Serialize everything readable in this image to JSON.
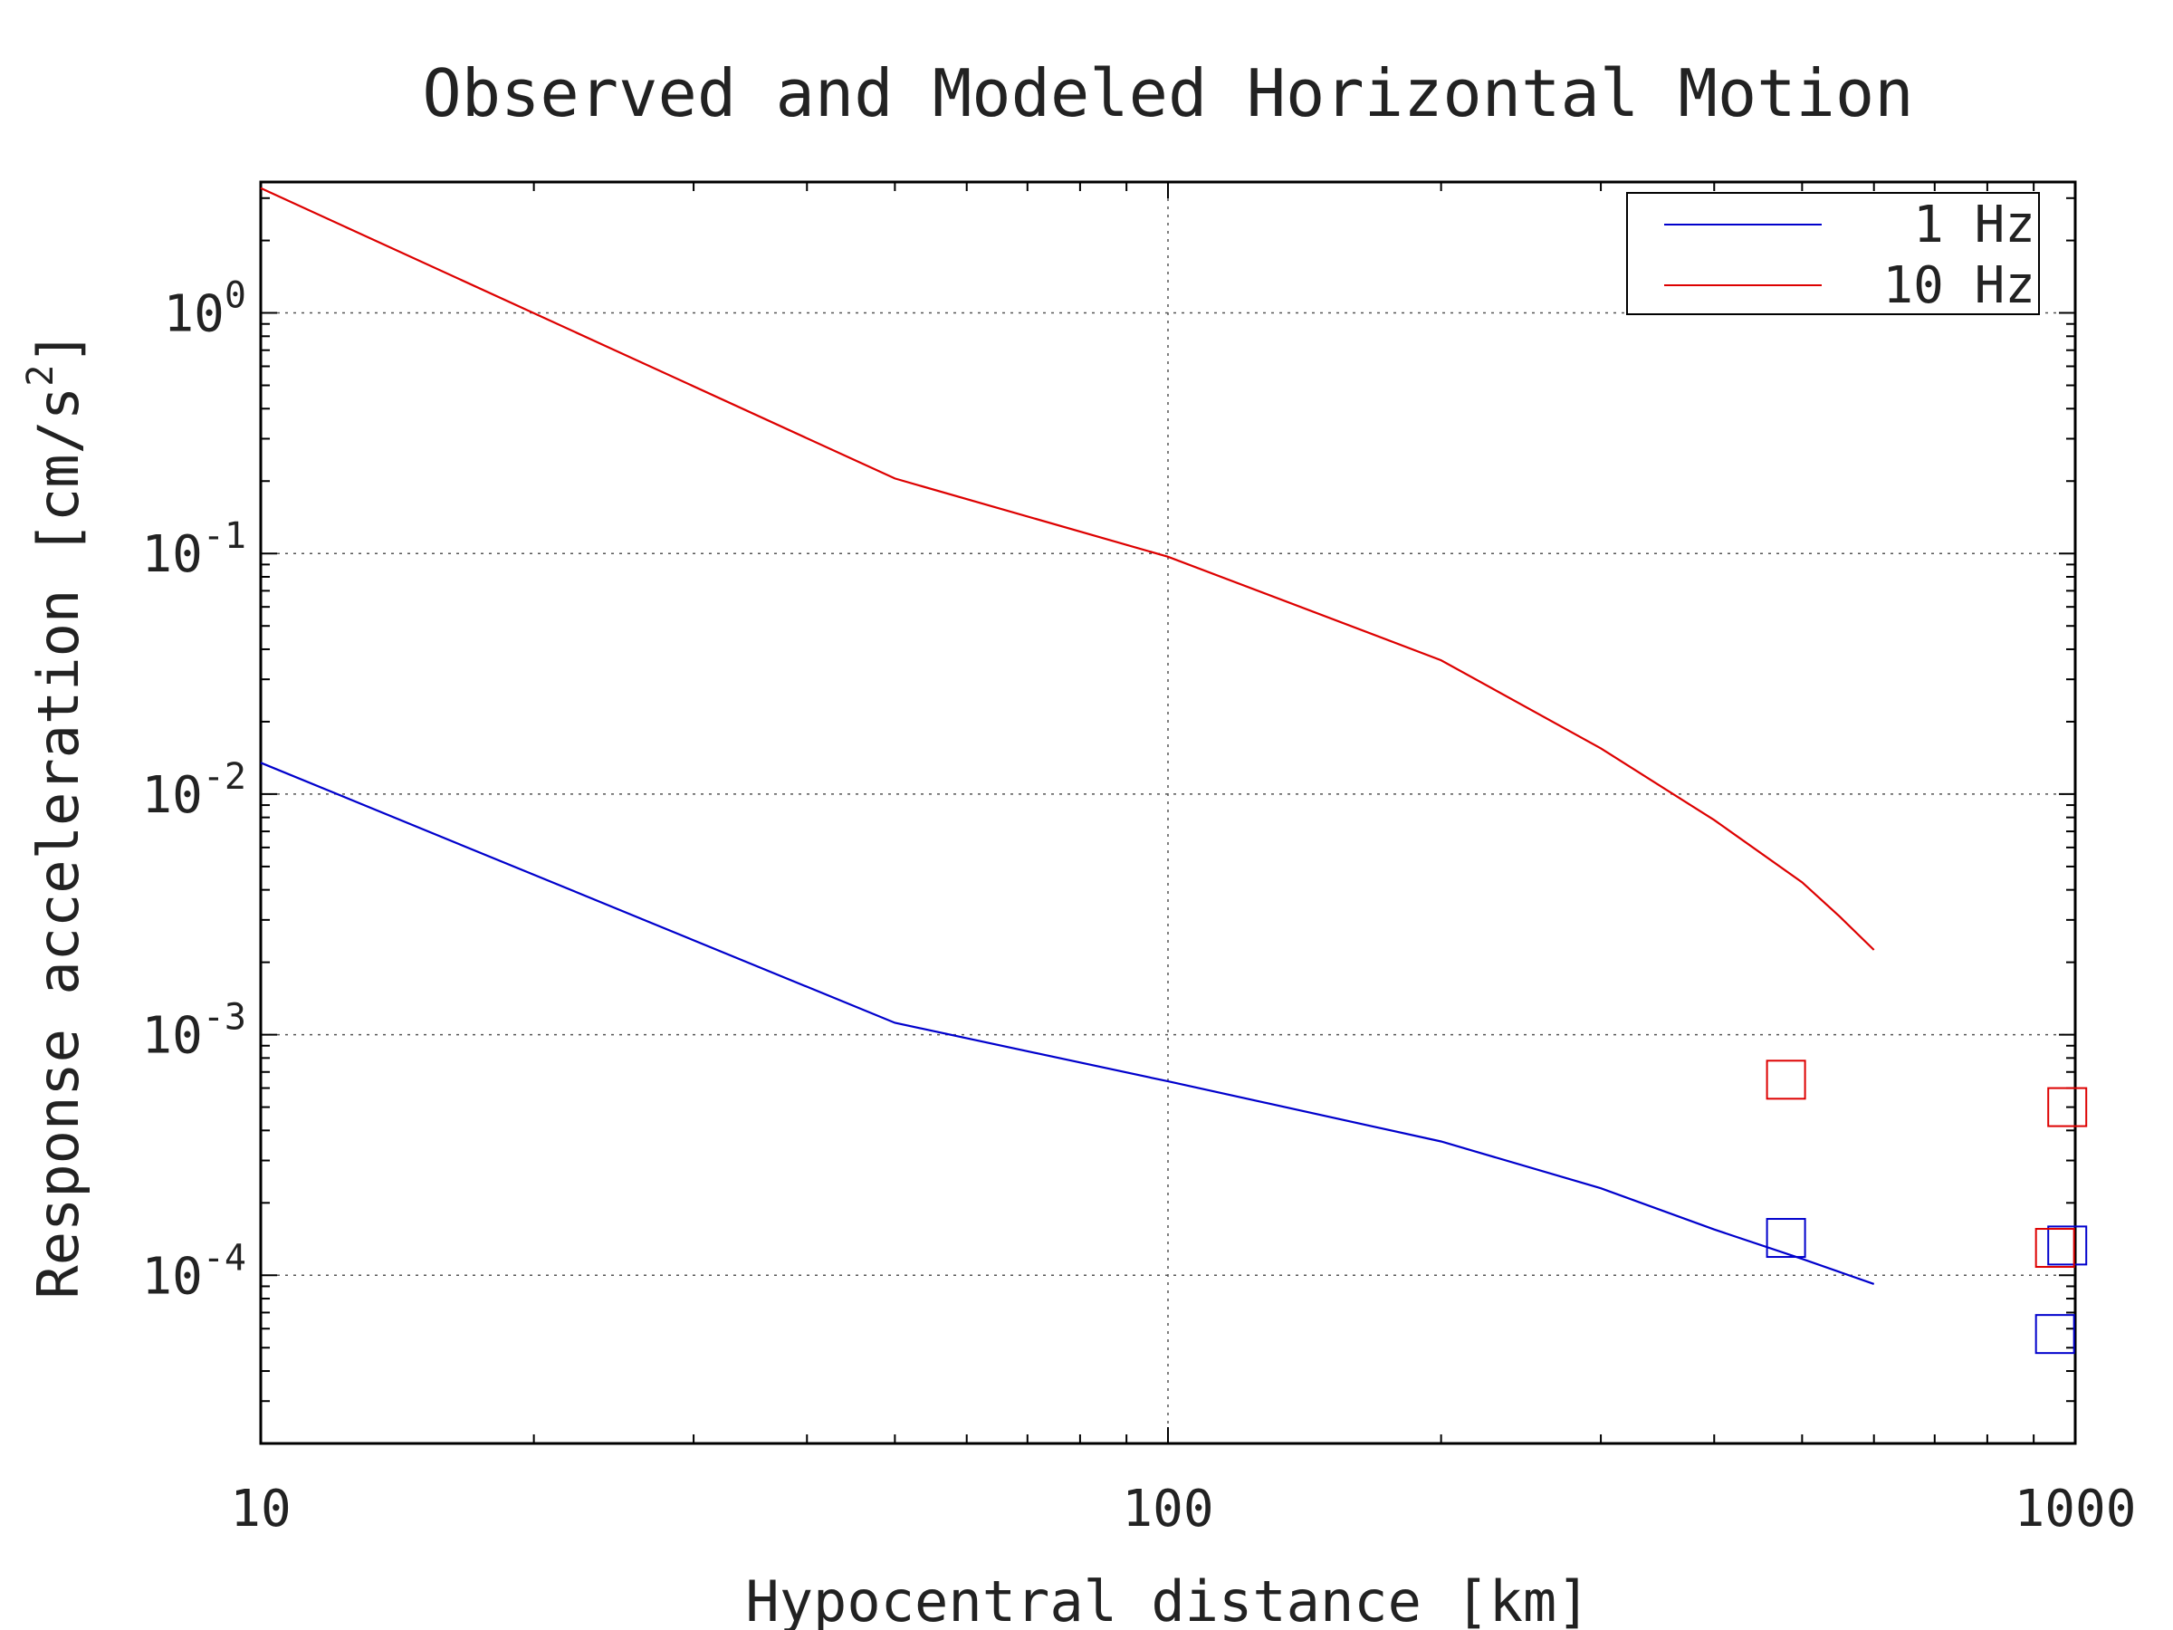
{
  "chart_data": {
    "type": "line",
    "title": "Observed and Modeled Horizontal Motion",
    "xlabel": "Hypocentral distance [km]",
    "ylabel": "Response acceleration [cm/s²]",
    "ylabel_main": "Response acceleration [cm/s",
    "ylabel_sup": "2",
    "ylabel_close": "]",
    "xscale": "log",
    "yscale": "log",
    "xlim": [
      10,
      1000
    ],
    "ylim": [
      2e-05,
      3.5
    ],
    "x_ticks": [
      {
        "value": 10,
        "label": "10"
      },
      {
        "value": 100,
        "label": "100"
      },
      {
        "value": 1000,
        "label": "1000"
      }
    ],
    "y_ticks": [
      {
        "value": 1,
        "base": "10",
        "exp": "0"
      },
      {
        "value": 0.1,
        "base": "10",
        "exp": "-1"
      },
      {
        "value": 0.01,
        "base": "10",
        "exp": "-2"
      },
      {
        "value": 0.001,
        "base": "10",
        "exp": "-3"
      },
      {
        "value": 0.0001,
        "base": "10",
        "exp": "-4"
      }
    ],
    "grid": true,
    "legend_position": "top-right",
    "series": [
      {
        "name": "1 Hz",
        "color": "#0000cc",
        "x": [
          10,
          50,
          100,
          200,
          300,
          400,
          500,
          600
        ],
        "y": [
          0.0135,
          0.00112,
          0.00064,
          0.00036,
          0.00023,
          0.000155,
          0.000117,
          9.2e-05
        ]
      },
      {
        "name": "10 Hz",
        "color": "#dd0000",
        "x": [
          10,
          50,
          100,
          200,
          300,
          400,
          500,
          550,
          600
        ],
        "y": [
          3.3,
          0.205,
          0.097,
          0.036,
          0.0155,
          0.0078,
          0.0043,
          0.0031,
          0.00225
        ]
      }
    ],
    "observations": [
      {
        "series": "1 Hz",
        "x": 480,
        "y": 0.000143
      },
      {
        "series": "1 Hz",
        "x": 980,
        "y": 0.000133
      },
      {
        "series": "1 Hz",
        "x": 950,
        "y": 5.7e-05
      },
      {
        "series": "10 Hz",
        "x": 480,
        "y": 0.00065
      },
      {
        "series": "10 Hz",
        "x": 980,
        "y": 0.0005
      },
      {
        "series": "10 Hz",
        "x": 950,
        "y": 0.00013
      }
    ],
    "legend_labels": [
      "1 Hz",
      "10 Hz"
    ]
  }
}
